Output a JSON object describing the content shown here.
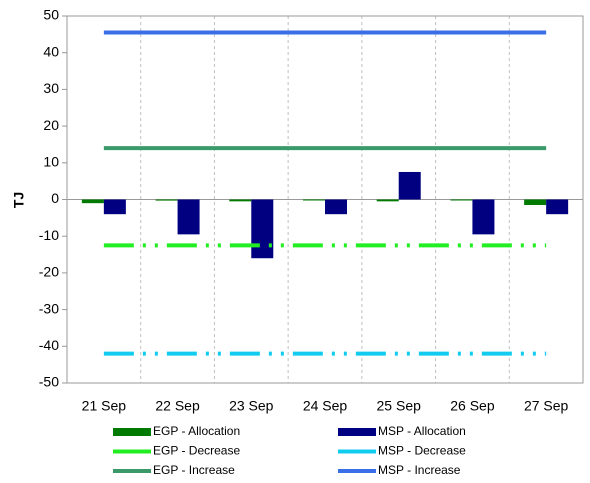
{
  "chart_data": {
    "type": "bar",
    "y_label": "TJ",
    "categories": [
      "21 Sep",
      "22 Sep",
      "23 Sep",
      "24 Sep",
      "25 Sep",
      "26 Sep",
      "27 Sep"
    ],
    "ylim": [
      -50,
      50
    ],
    "yticks": [
      -50,
      -40,
      -30,
      -20,
      -10,
      0,
      10,
      20,
      30,
      40,
      50
    ],
    "series": [
      {
        "name": "EGP - Allocation",
        "type": "bar",
        "color": "#007a00",
        "values": [
          -1,
          -0.3,
          -0.5,
          -0.2,
          -0.5,
          -0.2,
          -1.5
        ]
      },
      {
        "name": "MSP - Allocation",
        "type": "bar",
        "color": "#000080",
        "values": [
          -4,
          -9.5,
          -16,
          -4,
          7.5,
          -9.5,
          -4
        ]
      },
      {
        "name": "EGP - Decrease",
        "type": "line",
        "dashed": true,
        "color": "#22ee22",
        "values": [
          -12.5,
          -12.5,
          -12.5,
          -12.5,
          -12.5,
          -12.5,
          -12.5
        ]
      },
      {
        "name": "MSP - Decrease",
        "type": "line",
        "dashed": true,
        "color": "#11ccee",
        "values": [
          -42,
          -42,
          -42,
          -42,
          -42,
          -42,
          -42
        ]
      },
      {
        "name": "EGP - Increase",
        "type": "line",
        "dashed": false,
        "color": "#3a9a6a",
        "values": [
          14,
          14,
          14,
          14,
          14,
          14,
          14
        ]
      },
      {
        "name": "MSP - Increase",
        "type": "line",
        "dashed": false,
        "color": "#3a6ee8",
        "values": [
          45.5,
          45.5,
          45.5,
          45.5,
          45.5,
          45.5,
          45.5
        ]
      }
    ]
  }
}
